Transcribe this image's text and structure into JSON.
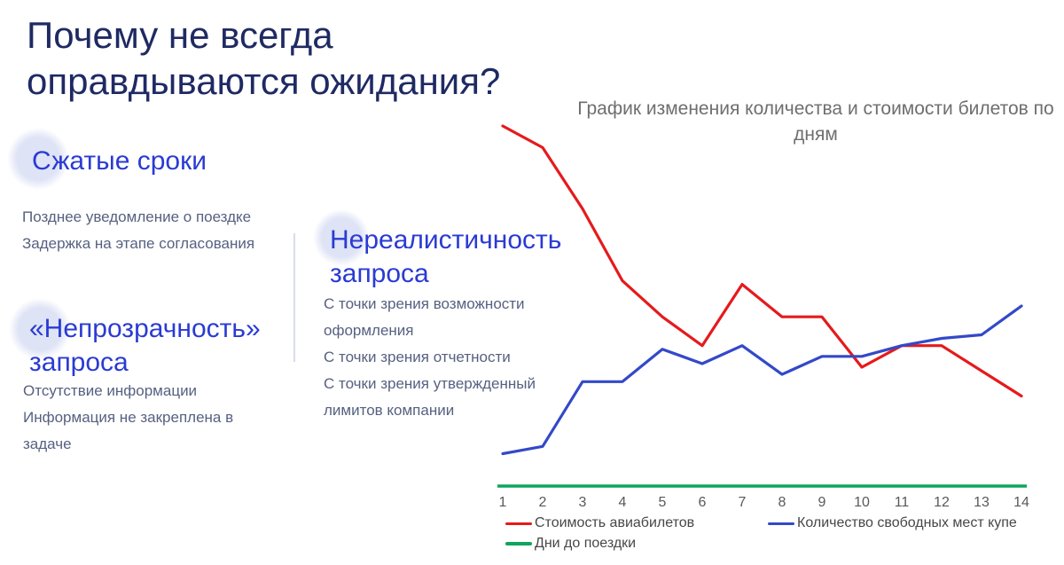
{
  "slide": {
    "title": "Почему не всегда оправдываются ожидания?"
  },
  "sections": [
    {
      "heading": "Сжатые сроки",
      "items": [
        "Позднее уведомление о поездке",
        "Задержка на этапе согласования"
      ]
    },
    {
      "heading": "«Непрозрачность» запроса",
      "items": [
        "Отсутствие информации",
        "Информация не закреплена в задаче"
      ]
    },
    {
      "heading": "Нереалистичность запроса",
      "items": [
        "С точки зрения возможности оформления",
        "С точки зрения отчетности",
        "С точки зрения утвержденный лимитов компании"
      ]
    }
  ],
  "chart_data": {
    "type": "line",
    "title": "График изменения количества и стоимости билетов по дням",
    "x": [
      1,
      2,
      3,
      4,
      5,
      6,
      7,
      8,
      9,
      10,
      11,
      12,
      13,
      14
    ],
    "xlabel": "",
    "ylabel": "",
    "y_axis_visible": false,
    "y_unit": "relative value 0-100 (no labeled y axis)",
    "ylim": [
      0,
      100
    ],
    "grid": false,
    "legend_position": "bottom",
    "series": [
      {
        "name": "Стоимость авиабилетов",
        "color": "#e51a1c",
        "values": [
          100,
          94,
          77,
          57,
          47,
          39,
          56,
          47,
          47,
          33,
          39,
          39,
          32,
          25
        ]
      },
      {
        "name": "Количество свободных мест купе",
        "color": "#3349c8",
        "values": [
          9,
          11,
          29,
          29,
          38,
          34,
          39,
          31,
          36,
          36,
          39,
          41,
          42,
          50
        ]
      },
      {
        "name": "Дни до поездки",
        "color": "#0ea55c",
        "values": [
          0,
          0,
          0,
          0,
          0,
          0,
          0,
          0,
          0,
          0,
          0,
          0,
          0,
          0
        ],
        "role": "baseline-axis"
      }
    ]
  },
  "colors": {
    "title": "#1f2a63",
    "heading": "#2a3bd2",
    "body_text": "#566181",
    "chart_title": "#6e6e6e",
    "tick_labels": "#595959",
    "accent_circle": "#dee3f5"
  }
}
